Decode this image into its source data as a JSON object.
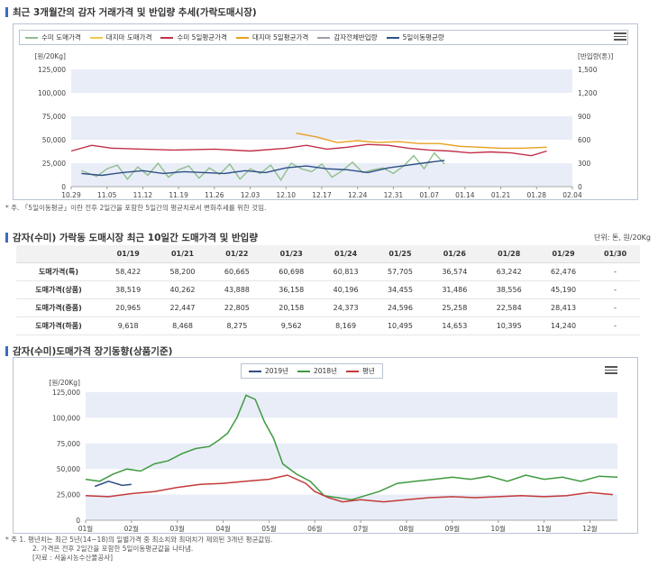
{
  "section1": {
    "title": "최근 3개월간의 감자 거래가격 및 반입량 추세(가락도매시장)",
    "note": "* 주. 「5일이동평균」이란 전후 2일간을 포함한 5일간의 평균치로서 변화추세를 위한 것임."
  },
  "section2": {
    "title": "감자(수미) 가락동 도매시장 최근 10일간 도매가격 및 반입량",
    "unit": "단위: 톤, 원/20Kg"
  },
  "section3": {
    "title": "감자(수미)도매가격 장기동향(상품기준)",
    "notes": [
      "* 주 1. 평년치는 최근 5년(14~18)의 일별가격 중 최소치와 최대치가 제외된 3개년 평균값임.",
      "2. 가격은 전후 2일간을 포함한 5일이동평균값을 나타냄.",
      "[자료 : 서울시농수산물공사]"
    ]
  },
  "table": {
    "headers": [
      "",
      "01/19",
      "01/21",
      "01/22",
      "01/23",
      "01/24",
      "01/25",
      "01/26",
      "01/28",
      "01/29",
      "01/30"
    ],
    "rows": [
      {
        "label": "도매가격(특)",
        "values": [
          "58,422",
          "58,200",
          "60,665",
          "60,698",
          "60,813",
          "57,705",
          "36,574",
          "63,242",
          "62,476",
          "-"
        ]
      },
      {
        "label": "도매가격(상품)",
        "values": [
          "38,519",
          "40,262",
          "43,888",
          "36,158",
          "40,196",
          "34,455",
          "31,486",
          "38,556",
          "45,190",
          "-"
        ]
      },
      {
        "label": "도매가격(중품)",
        "values": [
          "20,965",
          "22,447",
          "22,805",
          "20,158",
          "24,373",
          "24,596",
          "25,258",
          "22,584",
          "28,413",
          "-"
        ]
      },
      {
        "label": "도매가격(하품)",
        "values": [
          "9,618",
          "8,468",
          "8,275",
          "9,562",
          "8,169",
          "10,495",
          "14,653",
          "10,395",
          "14,240",
          "-"
        ]
      }
    ]
  },
  "colors": {
    "suemi_price": "#8fbf8c",
    "daeji_price": "#f0c94a",
    "suemi_ma": "#c2304a",
    "daeji_ma": "#e8a020",
    "volume": "#9aa0a8",
    "volume_ma": "#2e4f86",
    "y2019": "#2e4f86",
    "y2018": "#3f9a3f",
    "normal": "#c33a3a",
    "band": "#e9edf8",
    "accent": "#3b6cc4"
  },
  "chart_data": [
    {
      "type": "line",
      "legend": [
        "수미 도매가격",
        "대지마 도매가격",
        "수미 5일평균가격",
        "대지마 5일평균가격",
        "감자전체반입량",
        "5일이동평균량"
      ],
      "left_axis": {
        "unit": "[원/20Kg]",
        "ylim": [
          0,
          125000
        ],
        "ticks": [
          "0",
          "25,000",
          "50,000",
          "75,000",
          "100,000",
          "125,000"
        ]
      },
      "right_axis": {
        "unit": "[반입량(톤)]",
        "ylim": [
          0,
          1500
        ],
        "ticks": [
          "0",
          "300",
          "600",
          "900",
          "1,200",
          "1,500"
        ]
      },
      "x_ticks": [
        "10.29",
        "11.05",
        "11.12",
        "11.19",
        "11.26",
        "12.03",
        "12.10",
        "12.17",
        "12.24",
        "12.31",
        "01.07",
        "01.14",
        "01.21",
        "01.28",
        "02.04"
      ],
      "x_range_days": [
        0,
        98
      ],
      "series": [
        {
          "name": "수미 5일평균가격",
          "axis": "left",
          "x": [
            0,
            4,
            8,
            14,
            20,
            28,
            35,
            42,
            46,
            50,
            54,
            58,
            62,
            66,
            70,
            74,
            78,
            82,
            86,
            90,
            93
          ],
          "y": [
            38000,
            44000,
            41000,
            40000,
            39000,
            40000,
            38000,
            41000,
            44000,
            40000,
            42000,
            45000,
            44000,
            41000,
            39000,
            38000,
            36000,
            37000,
            36000,
            33000,
            38000
          ]
        },
        {
          "name": "대지마 5일평균가격",
          "axis": "left",
          "x": [
            44,
            48,
            52,
            56,
            60,
            64,
            68,
            72,
            76,
            80,
            84,
            88,
            93
          ],
          "y": [
            57000,
            53000,
            47000,
            49000,
            47000,
            48000,
            46000,
            46000,
            43000,
            42000,
            41000,
            41000,
            42000
          ]
        },
        {
          "name": "수미 도매가격",
          "axis": "left",
          "x": [
            2,
            5,
            7,
            9,
            11,
            13,
            15,
            17,
            19,
            21,
            23,
            25,
            27,
            29,
            31,
            33,
            35,
            37,
            39,
            41,
            43,
            45,
            47,
            49,
            51,
            53,
            55,
            57,
            59,
            61,
            63,
            65,
            67,
            69,
            71,
            73
          ],
          "y": [
            17000,
            11000,
            19000,
            23000,
            8000,
            21000,
            12000,
            25000,
            10000,
            18000,
            22000,
            9000,
            20000,
            13000,
            24000,
            8000,
            19000,
            14000,
            23000,
            7000,
            25000,
            19000,
            16000,
            24000,
            10000,
            17000,
            26000,
            15000,
            18000,
            20000,
            14000,
            22000,
            33000,
            19000,
            36000,
            24000
          ]
        },
        {
          "name": "5일이동평균량",
          "axis": "right",
          "x": [
            2,
            6,
            10,
            14,
            18,
            22,
            26,
            30,
            34,
            38,
            42,
            46,
            50,
            54,
            58,
            62,
            66,
            70,
            73
          ],
          "y": [
            168,
            144,
            180,
            204,
            168,
            192,
            180,
            168,
            204,
            180,
            240,
            264,
            228,
            216,
            180,
            240,
            276,
            312,
            336
          ]
        }
      ]
    },
    {
      "type": "line",
      "legend": [
        "2019년",
        "2018년",
        "평년"
      ],
      "unit": "[원/20Kg]",
      "ylim": [
        0,
        125000
      ],
      "y_ticks": [
        "0",
        "25,000",
        "50,000",
        "75,000",
        "100,000",
        "125,000"
      ],
      "x_ticks": [
        "01월",
        "02월",
        "03월",
        "04월",
        "05월",
        "06월",
        "07월",
        "08월",
        "09월",
        "10월",
        "11월",
        "12월"
      ],
      "series": [
        {
          "name": "2019년",
          "x": [
            0.2,
            0.5,
            0.8,
            1.0
          ],
          "y": [
            33000,
            38000,
            34000,
            35000
          ]
        },
        {
          "name": "2018년",
          "x": [
            0,
            0.3,
            0.6,
            0.9,
            1.2,
            1.5,
            1.8,
            2.1,
            2.4,
            2.7,
            2.9,
            3.1,
            3.3,
            3.5,
            3.7,
            3.9,
            4.1,
            4.3,
            4.6,
            4.9,
            5.2,
            5.5,
            5.8,
            6.1,
            6.4,
            6.8,
            7.2,
            7.6,
            8.0,
            8.4,
            8.8,
            9.2,
            9.6,
            10.0,
            10.4,
            10.8,
            11.2,
            11.6
          ],
          "y": [
            40000,
            38000,
            45000,
            50000,
            48000,
            55000,
            58000,
            65000,
            70000,
            72000,
            78000,
            85000,
            100000,
            122000,
            118000,
            96000,
            80000,
            55000,
            45000,
            38000,
            24000,
            22000,
            20000,
            24000,
            28000,
            36000,
            38000,
            40000,
            42000,
            40000,
            43000,
            38000,
            44000,
            40000,
            42000,
            38000,
            43000,
            42000
          ]
        },
        {
          "name": "평년",
          "x": [
            0,
            0.5,
            1.0,
            1.5,
            2.0,
            2.5,
            3.0,
            3.5,
            4.0,
            4.4,
            4.8,
            5.0,
            5.3,
            5.6,
            6.0,
            6.5,
            7.0,
            7.5,
            8.0,
            8.5,
            9.0,
            9.5,
            10.0,
            10.5,
            11.0,
            11.5
          ],
          "y": [
            24000,
            23000,
            26000,
            28000,
            32000,
            35000,
            36000,
            38000,
            40000,
            44000,
            36000,
            28000,
            22000,
            18000,
            20000,
            18000,
            20000,
            22000,
            23000,
            22000,
            23000,
            24000,
            23000,
            24000,
            27000,
            25000
          ]
        }
      ]
    }
  ]
}
